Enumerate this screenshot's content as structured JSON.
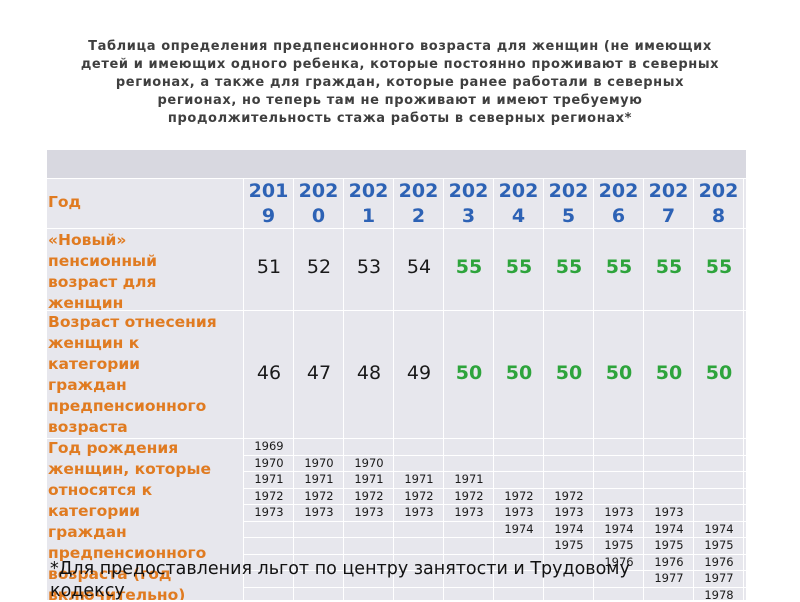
{
  "title_lines": [
    "Таблица определения предпенсионного возраста для женщин (не имеющих",
    "детей и имеющих одного ребенка, которые постоянно проживают в  северных",
    "регионах, а также для граждан, которые ранее работали в северных",
    "регионах, но теперь там не проживают и имеют требуемую",
    "продолжительность стажа работы в северных регионах*"
  ],
  "table": {
    "year_label": "Год",
    "years": [
      {
        "top": "201",
        "bottom": "9"
      },
      {
        "top": "202",
        "bottom": "0"
      },
      {
        "top": "202",
        "bottom": "1"
      },
      {
        "top": "202",
        "bottom": "2"
      },
      {
        "top": "202",
        "bottom": "3"
      },
      {
        "top": "202",
        "bottom": "4"
      },
      {
        "top": "202",
        "bottom": "5"
      },
      {
        "top": "202",
        "bottom": "6"
      },
      {
        "top": "202",
        "bottom": "7"
      },
      {
        "top": "202",
        "bottom": "8"
      }
    ],
    "new_age_label_lines": [
      "«Новый»",
      "пенсионный",
      "возраст для",
      "женщин"
    ],
    "new_age_values": [
      "51",
      "52",
      "53",
      "54",
      "55",
      "55",
      "55",
      "55",
      "55",
      "55"
    ],
    "pre_age_label_lines": [
      "Возраст отнесения",
      "женщин  к",
      "категории",
      "граждан",
      "предпенсионного",
      "возраста"
    ],
    "pre_age_values": [
      "46",
      "47",
      "48",
      "49",
      "50",
      "50",
      "50",
      "50",
      "50",
      "50"
    ],
    "birth_label_lines": [
      "Год рождения",
      "женщин, которые",
      "относятся к",
      "категории",
      "граждан",
      "предпенсионного",
      "возраста (год",
      "включительно)"
    ],
    "birth_rows": [
      [
        "1969",
        "",
        "",
        "",
        "",
        "",
        "",
        "",
        "",
        ""
      ],
      [
        "1970",
        "1970",
        "1970",
        "",
        "",
        "",
        "",
        "",
        "",
        ""
      ],
      [
        "1971",
        "1971",
        "1971",
        "1971",
        "1971",
        "",
        "",
        "",
        "",
        ""
      ],
      [
        "1972",
        "1972",
        "1972",
        "1972",
        "1972",
        "1972",
        "1972",
        "",
        "",
        ""
      ],
      [
        "1973",
        "1973",
        "1973",
        "1973",
        "1973",
        "1973",
        "1973",
        "1973",
        "1973",
        ""
      ],
      [
        "",
        "",
        "",
        "",
        "",
        "1974",
        "1974",
        "1974",
        "1974",
        "1974"
      ],
      [
        "",
        "",
        "",
        "",
        "",
        "",
        "1975",
        "1975",
        "1975",
        "1975"
      ],
      [
        "",
        "",
        "",
        "",
        "",
        "",
        "",
        "1976",
        "1976",
        "1976"
      ],
      [
        "",
        "",
        "",
        "",
        "",
        "",
        "",
        "",
        "1977",
        "1977"
      ],
      [
        "",
        "",
        "",
        "",
        "",
        "",
        "",
        "",
        "",
        "1978"
      ]
    ],
    "colors": {
      "label": "#e07b21",
      "year": "#2d62b5",
      "green": "#2ea43c"
    }
  },
  "footnote_lines": [
    "*Для предоставления льгот по центру занятости и Трудовому",
    "кодексу"
  ]
}
